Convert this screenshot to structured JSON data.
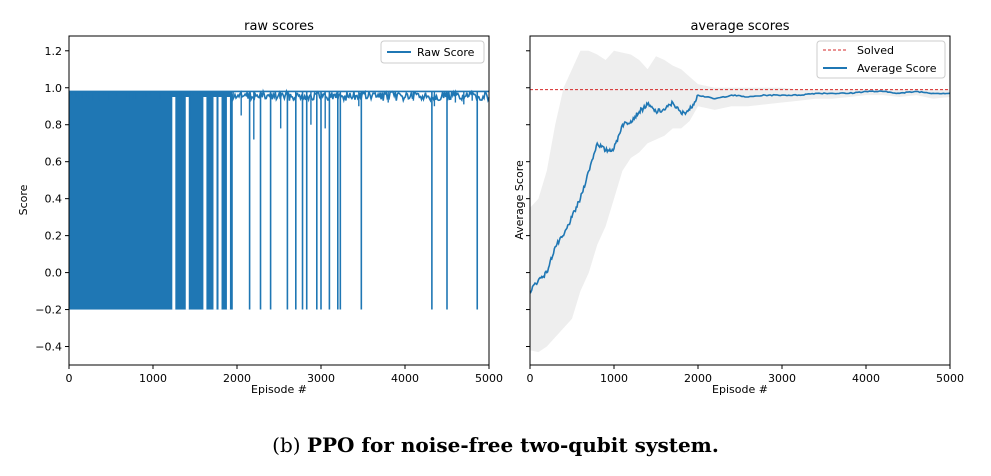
{
  "caption": {
    "label": "(b)",
    "text": "PPO for noise-free two-qubit system."
  },
  "colors": {
    "line": "#1f77b4",
    "solved": "#d62728",
    "band": "#eeeeee",
    "axis": "#000000"
  },
  "chart_data": [
    {
      "type": "line",
      "title": "raw scores",
      "xlabel": "Episode #",
      "ylabel": "Score",
      "xlim": [
        0,
        5000
      ],
      "ylim": [
        -0.5,
        1.28
      ],
      "xticks": [
        0,
        1000,
        2000,
        3000,
        4000,
        5000
      ],
      "yticks": [
        -0.4,
        -0.2,
        0.0,
        0.2,
        0.4,
        0.6,
        0.8,
        1.0,
        1.2
      ],
      "legend": {
        "position": "upper right",
        "entries": [
          "Raw Score"
        ]
      },
      "series": [
        {
          "name": "Raw Score",
          "description_values": {
            "max": 0.98,
            "min": -0.2,
            "dense_oscillation_range_episodes": [
              0,
              2000
            ],
            "late_dip_episodes_to_min": [
              2150,
              2280,
              2400,
              2600,
              2700,
              2780,
              2830,
              2950,
              3000,
              3100,
              3200,
              3230,
              3480,
              4320,
              4500,
              4860
            ],
            "partial_dip_episodes": [
              [
                1350,
                0.82
              ],
              [
                1450,
                0.83
              ],
              [
                2050,
                0.85
              ],
              [
                2200,
                0.72
              ],
              [
                2520,
                0.78
              ],
              [
                2880,
                0.8
              ],
              [
                3050,
                0.78
              ],
              [
                3450,
                0.9
              ],
              [
                3800,
                0.92
              ],
              [
                4100,
                0.93
              ],
              [
                4350,
                0.9
              ],
              [
                4600,
                0.92
              ],
              [
                4700,
                0.91
              ],
              [
                4800,
                0.93
              ]
            ]
          }
        }
      ],
      "grid": false
    },
    {
      "type": "line",
      "title": "average scores",
      "xlabel": "Episode #",
      "ylabel": "Average Score",
      "xlim": [
        0,
        5000
      ],
      "ylim": [
        -0.5,
        1.28
      ],
      "xticks": [
        0,
        1000,
        2000,
        3000,
        4000,
        5000
      ],
      "yticks": [
        -0.4,
        -0.2,
        0.0,
        0.2,
        0.4,
        0.6,
        0.8,
        1.0,
        1.2
      ],
      "legend": {
        "position": "upper right",
        "entries": [
          "Solved",
          "Average Score"
        ]
      },
      "solved_level": 0.99,
      "series": [
        {
          "name": "Average Score",
          "x": [
            0,
            100,
            200,
            300,
            400,
            500,
            600,
            700,
            800,
            900,
            1000,
            1100,
            1200,
            1300,
            1400,
            1500,
            1600,
            1700,
            1800,
            1900,
            2000,
            2200,
            2400,
            2600,
            2800,
            3000,
            3200,
            3400,
            3600,
            3800,
            4000,
            4200,
            4400,
            4600,
            4800,
            5000
          ],
          "y": [
            -0.1,
            -0.04,
            0.0,
            0.14,
            0.2,
            0.3,
            0.4,
            0.55,
            0.7,
            0.66,
            0.67,
            0.8,
            0.82,
            0.87,
            0.91,
            0.87,
            0.88,
            0.92,
            0.86,
            0.88,
            0.96,
            0.94,
            0.96,
            0.95,
            0.96,
            0.96,
            0.96,
            0.97,
            0.97,
            0.97,
            0.98,
            0.98,
            0.97,
            0.98,
            0.97,
            0.97
          ],
          "band_upper": [
            0.35,
            0.4,
            0.55,
            0.8,
            1.0,
            1.1,
            1.2,
            1.2,
            1.18,
            1.15,
            1.2,
            1.19,
            1.18,
            1.15,
            1.1,
            1.17,
            1.15,
            1.12,
            1.1,
            1.06,
            1.02,
            1.0,
            1.0,
            1.0,
            1.0,
            1.0,
            0.99,
            0.99,
            0.99,
            0.99,
            0.99,
            0.99,
            0.99,
            0.99,
            0.99,
            0.99
          ],
          "band_lower": [
            -0.42,
            -0.43,
            -0.4,
            -0.35,
            -0.3,
            -0.25,
            -0.1,
            0.0,
            0.15,
            0.25,
            0.4,
            0.55,
            0.62,
            0.65,
            0.7,
            0.72,
            0.74,
            0.78,
            0.78,
            0.82,
            0.9,
            0.88,
            0.9,
            0.9,
            0.91,
            0.92,
            0.93,
            0.94,
            0.94,
            0.95,
            0.96,
            0.96,
            0.95,
            0.96,
            0.94,
            0.95
          ]
        }
      ],
      "grid": false
    }
  ]
}
